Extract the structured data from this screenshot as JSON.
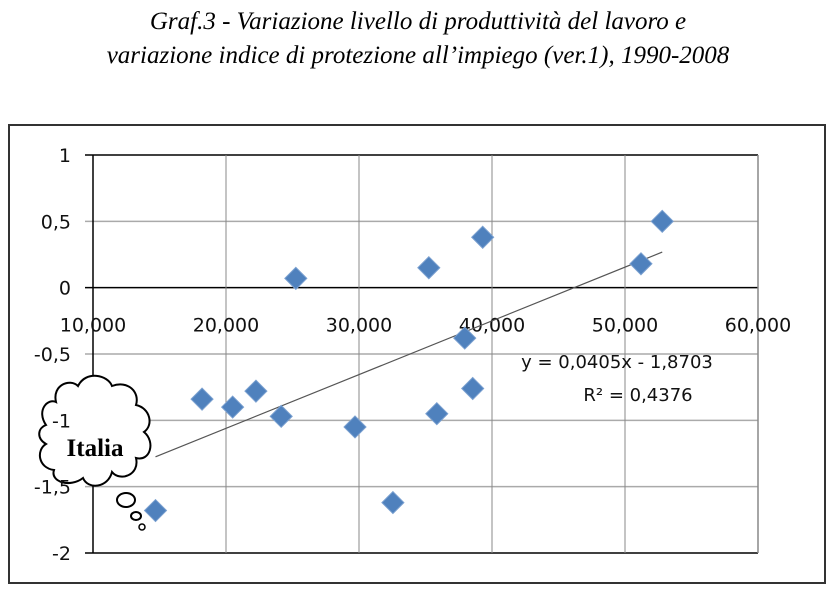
{
  "title_line1": "Graf.3 - Variazione livello di produttività del lavoro e",
  "title_line2": "variazione indice di protezione all’impiego (ver.1), 1990-2008",
  "chart_data": {
    "type": "scatter",
    "title": "Graf.3 - Variazione livello di produttività del lavoro e variazione indice di protezione all’impiego (ver.1), 1990-2008",
    "xlabel": "",
    "ylabel": "",
    "xlim": [
      10000,
      60000
    ],
    "ylim": [
      -2,
      1
    ],
    "x_ticks": [
      10000,
      20000,
      30000,
      40000,
      50000,
      60000
    ],
    "x_tick_labels": [
      "10,000",
      "20,000",
      "30,000",
      "40,000",
      "50,000",
      "60,000"
    ],
    "y_ticks": [
      1,
      0.5,
      0,
      -0.5,
      -1,
      -1.5,
      -2
    ],
    "y_tick_labels": [
      "1",
      "0,5",
      "0",
      "-0,5",
      "-1",
      "-1,5",
      "-2"
    ],
    "grid": true,
    "marker_color": "#4f81bd",
    "points": [
      {
        "x": 14700,
        "y": -1.68
      },
      {
        "x": 18200,
        "y": -0.84
      },
      {
        "x": 20500,
        "y": -0.9
      },
      {
        "x": 22250,
        "y": -0.78
      },
      {
        "x": 24150,
        "y": -0.97
      },
      {
        "x": 25250,
        "y": 0.07
      },
      {
        "x": 29700,
        "y": -1.05
      },
      {
        "x": 32550,
        "y": -1.62
      },
      {
        "x": 35250,
        "y": 0.15
      },
      {
        "x": 35850,
        "y": -0.95
      },
      {
        "x": 37950,
        "y": -0.38
      },
      {
        "x": 38550,
        "y": -0.76
      },
      {
        "x": 39300,
        "y": 0.38
      },
      {
        "x": 51200,
        "y": 0.18
      },
      {
        "x": 52800,
        "y": 0.5
      }
    ],
    "trendline": {
      "slope_per_thousand": 0.0405,
      "intercept": -1.8703,
      "x_range": [
        14700,
        52800
      ]
    },
    "trend_equation": "y = 0,0405x - 1,8703",
    "r_squared": "R² = 0,4376",
    "annotation": "Italia"
  }
}
